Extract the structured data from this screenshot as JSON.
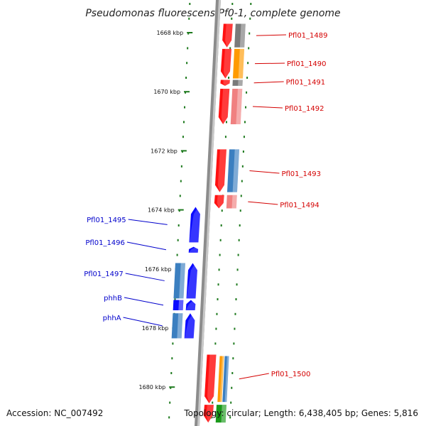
{
  "title": "Pseudomonas fluorescens Pf0-1, complete genome",
  "footer": {
    "accession": "Accession: NC_007492",
    "topology": "Topology: circular; Length: 6,438,405 bp; Genes: 5,816"
  },
  "colors": {
    "forward_strand": "#d40000",
    "reverse_strand": "#0000cc",
    "tick_dots": "#1e7a1e",
    "backbone": "#8c8c8c",
    "cds_red": "#ff1010",
    "cds_blue": "#0a0aff",
    "cog_steelblue": "#3b7fc0",
    "cog_orange": "#ff9a00",
    "cog_gray": "#7a7a7a",
    "cog_pink": "#f08080",
    "cog_green": "#1a9a1a"
  },
  "ticks": [
    {
      "label": "1668 kbp",
      "kbp": 1668
    },
    {
      "label": "1670 kbp",
      "kbp": 1670
    },
    {
      "label": "1672 kbp",
      "kbp": 1672
    },
    {
      "label": "1674 kbp",
      "kbp": 1674
    },
    {
      "label": "1676 kbp",
      "kbp": 1676
    },
    {
      "label": "1678 kbp",
      "kbp": 1678
    },
    {
      "label": "1680 kbp",
      "kbp": 1680
    }
  ],
  "genes": [
    {
      "name": "Pfl01_1489",
      "strand": "+",
      "start_kbp": 1667.7,
      "end_kbp": 1668.5,
      "cog": "gray"
    },
    {
      "name": "Pfl01_1490",
      "strand": "+",
      "start_kbp": 1668.55,
      "end_kbp": 1669.55,
      "cog": "orange"
    },
    {
      "name": "Pfl01_1491",
      "strand": "+",
      "start_kbp": 1669.6,
      "end_kbp": 1669.8,
      "cog": "gray"
    },
    {
      "name": "Pfl01_1492",
      "strand": "+",
      "start_kbp": 1669.9,
      "end_kbp": 1671.1,
      "cog": "pink"
    },
    {
      "name": "Pfl01_1493",
      "strand": "+",
      "start_kbp": 1671.95,
      "end_kbp": 1673.4,
      "cog": "steelblue"
    },
    {
      "name": "Pfl01_1494",
      "strand": "+",
      "start_kbp": 1673.5,
      "end_kbp": 1673.95,
      "cog": "pink"
    },
    {
      "name": "Pfl01_1495",
      "strand": "-",
      "start_kbp": 1673.9,
      "end_kbp": 1675.1,
      "cog": "none"
    },
    {
      "name": "Pfl01_1496",
      "strand": "-",
      "start_kbp": 1675.25,
      "end_kbp": 1675.45,
      "cog": "none"
    },
    {
      "name": "Pfl01_1497",
      "strand": "-",
      "start_kbp": 1675.8,
      "end_kbp": 1677.0,
      "cog": "steelblue"
    },
    {
      "name": "phhB",
      "strand": "-",
      "start_kbp": 1677.05,
      "end_kbp": 1677.4,
      "cog": "blue"
    },
    {
      "name": "phhA",
      "strand": "-",
      "start_kbp": 1677.5,
      "end_kbp": 1678.35,
      "cog": "steelblue"
    },
    {
      "name": "Pfl01_1500",
      "strand": "+",
      "start_kbp": 1678.9,
      "end_kbp": 1680.55,
      "cog": "multi"
    },
    {
      "name": "",
      "strand": "+",
      "start_kbp": 1680.6,
      "end_kbp": 1681.2,
      "cog": "green"
    }
  ]
}
